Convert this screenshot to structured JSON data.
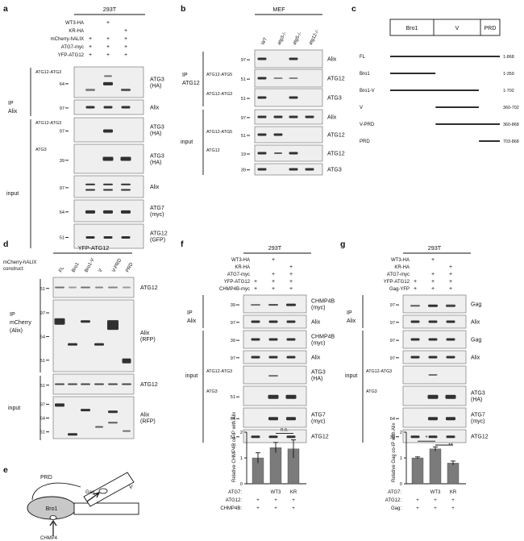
{
  "panels": {
    "a": {
      "letter": "a",
      "cell": "293T",
      "cond_labels": [
        "WT3-HA",
        "KR-HA",
        "mCherry-hALIX",
        "ATG7-myc",
        "YFP-ATG12"
      ],
      "cond_marks": [
        [
          "",
          "+",
          ""
        ],
        [
          "",
          "",
          "+"
        ],
        [
          "+",
          "+",
          "+"
        ],
        [
          "+",
          "+",
          "+"
        ],
        [
          "+",
          "+",
          "+"
        ]
      ],
      "group_ip": "IP",
      "group_ip2": "Alix",
      "group_input": "input",
      "blots": [
        {
          "labels": [
            "ATG3",
            "(HA)"
          ],
          "sub": "ATG12-ATG3",
          "mw": [
            "64"
          ]
        },
        {
          "labels": [
            "Alix"
          ],
          "sub": "",
          "mw": [
            "97"
          ]
        },
        {
          "labels": [
            "ATG3",
            "(HA)"
          ],
          "sub": "ATG12-ATG3",
          "mw": [
            "97"
          ]
        },
        {
          "labels": [
            "ATG3",
            "(HA)"
          ],
          "sub": "ATG3",
          "mw": [
            "39"
          ]
        },
        {
          "labels": [
            "Alix"
          ],
          "sub": "",
          "mw": [
            "97"
          ]
        },
        {
          "labels": [
            "ATG7",
            "(myc)"
          ],
          "sub": "",
          "mw": [
            "64"
          ]
        },
        {
          "labels": [
            "ATG12",
            "(GFP)"
          ],
          "sub": "",
          "mw": [
            "51"
          ]
        }
      ]
    },
    "b": {
      "letter": "b",
      "cell": "MEF",
      "lanes": [
        "WT",
        "atg3-/-",
        "atg5-/-",
        "atg12-/-"
      ],
      "group_ip": "IP",
      "group_ip2": "ATG12",
      "group_input": "input",
      "blots": [
        {
          "labels": [
            "Alix"
          ],
          "sub": "",
          "mw": [
            "97"
          ]
        },
        {
          "labels": [
            "ATG12"
          ],
          "sub": "ATG12-ATG5",
          "mw": [
            "51"
          ]
        },
        {
          "labels": [
            "ATG3"
          ],
          "sub": "ATG12-ATG3",
          "mw": [
            "51"
          ]
        },
        {
          "labels": [
            "Alix"
          ],
          "sub": "",
          "mw": [
            "97"
          ]
        },
        {
          "labels": [
            "ATG12"
          ],
          "sub": "ATG12-ATG5",
          "mw": [
            "51"
          ]
        },
        {
          "labels": [
            "ATG12"
          ],
          "sub": "ATG12",
          "mw": [
            "19"
          ]
        },
        {
          "labels": [
            "ATG3"
          ],
          "sub": "",
          "mw": [
            "39"
          ]
        }
      ]
    },
    "c": {
      "letter": "c",
      "domains": [
        "Bro1",
        "V",
        "PRD"
      ],
      "constructs": [
        {
          "name": "FL",
          "range": "1-868"
        },
        {
          "name": "Bro1",
          "range": "1-359"
        },
        {
          "name": "Bro1-V",
          "range": "1-702"
        },
        {
          "name": "V",
          "range": "360-702"
        },
        {
          "name": "V-PRD",
          "range": "360-868"
        },
        {
          "name": "PRD",
          "range": "703-868"
        }
      ]
    },
    "d": {
      "letter": "d",
      "cell": "YFP-ATG12",
      "construct_label_1": "mCherry-hALIX",
      "construct_label_2": "construct:",
      "lanes": [
        "FL",
        "Bro1",
        "Bro1-V",
        "V",
        "V-PRD",
        "PRD"
      ],
      "group_ip": "IP",
      "group_ip2": "mCherry",
      "group_ip3": "(Alix)",
      "group_input": "input",
      "blots": [
        {
          "labels": [
            "ATG12"
          ],
          "mw": [
            "51"
          ]
        },
        {
          "labels": [
            "Alix",
            "(RFP)"
          ],
          "mw": [
            "97",
            "64",
            "51"
          ]
        },
        {
          "labels": [
            "ATG12"
          ],
          "mw": [
            "51"
          ]
        },
        {
          "labels": [
            "Alix",
            "(RFP)"
          ],
          "mw": [
            "97",
            "64",
            "51"
          ]
        }
      ]
    },
    "e": {
      "letter": "e",
      "labels": {
        "prd": "PRD",
        "v": "V",
        "gag": "Gag",
        "bro1": "Bro1",
        "chmp4": "CHMP4"
      }
    },
    "f": {
      "letter": "f",
      "cell": "293T",
      "cond_labels": [
        "WT3-HA",
        "KR-HA",
        "ATG7-myc",
        "YFP-ATG12",
        "CHMP4B-myc"
      ],
      "cond_marks": [
        [
          "",
          "+",
          ""
        ],
        [
          "",
          "",
          "+"
        ],
        [
          "",
          "+",
          "+"
        ],
        [
          "+",
          "+",
          "+"
        ],
        [
          "+",
          "+",
          "+"
        ]
      ],
      "group_ip": "IP",
      "group_ip2": "Alix",
      "group_input": "input",
      "blots": [
        {
          "labels": [
            "CHMP4B",
            "(myc)"
          ],
          "sub": "",
          "mw": [
            "39"
          ]
        },
        {
          "labels": [
            "Alix"
          ],
          "sub": "",
          "mw": [
            "97"
          ]
        },
        {
          "labels": [
            "CHMP4B",
            "(myc)"
          ],
          "sub": "",
          "mw": [
            "39"
          ]
        },
        {
          "labels": [
            "Alix"
          ],
          "sub": "",
          "mw": [
            "97"
          ]
        },
        {
          "labels": [
            "ATG3",
            "(HA)"
          ],
          "sub": "ATG12-ATG3",
          "mw": []
        },
        {
          "labels": [],
          "sub": "ATG3",
          "mw": [
            "51"
          ]
        },
        {
          "labels": [
            "ATG7",
            "(myc)"
          ],
          "sub": "",
          "mw": [
            "64"
          ]
        },
        {
          "labels": [
            "ATG12"
          ],
          "sub": "",
          "mw": [
            "51"
          ]
        }
      ],
      "chart": {
        "ylabel": "Relative CHMP4B co-IP with Alix",
        "values": [
          1.0,
          1.4,
          1.35
        ],
        "errors": [
          0.2,
          0.2,
          0.35
        ],
        "annotation": "n.s.",
        "row_labels": [
          "ATG7:",
          "ATG12:",
          "CHMP4B:"
        ],
        "row_marks": [
          [
            "",
            "WT3",
            "KR"
          ],
          [
            "+",
            "+",
            "+"
          ],
          [
            "+",
            "+",
            "+"
          ]
        ]
      }
    },
    "g": {
      "letter": "g",
      "cell": "293T",
      "cond_labels": [
        "WT3-HA",
        "KR-HA",
        "ATG7-myc",
        "YFP-ATG12",
        "Gag-YFP"
      ],
      "cond_marks": [
        [
          "",
          "+",
          ""
        ],
        [
          "",
          "",
          "+"
        ],
        [
          "",
          "+",
          "+"
        ],
        [
          "+",
          "+",
          "+"
        ],
        [
          "+",
          "+",
          "+"
        ]
      ],
      "group_ip": "IP",
      "group_ip2": "Alix",
      "group_input": "input",
      "blots": [
        {
          "labels": [
            "Gag"
          ],
          "sub": "",
          "mw": [
            "97"
          ]
        },
        {
          "labels": [
            "Alix"
          ],
          "sub": "",
          "mw": [
            "97"
          ]
        },
        {
          "labels": [
            "Gag"
          ],
          "sub": "",
          "mw": [
            "97"
          ]
        },
        {
          "labels": [
            "Alix"
          ],
          "sub": "",
          "mw": [
            "97"
          ]
        },
        {
          "labels": [],
          "sub": "ATG12-ATG3",
          "mw": []
        },
        {
          "labels": [
            "ATG3",
            "(HA)"
          ],
          "sub": "ATG3",
          "mw": []
        },
        {
          "labels": [
            "ATG7",
            "(myc)"
          ],
          "sub": "",
          "mw": [
            "64"
          ]
        },
        {
          "labels": [
            "ATG12"
          ],
          "sub": "",
          "mw": [
            "39"
          ]
        }
      ],
      "chart": {
        "ylabel": "Relative Gag co-IP with Alix",
        "values": [
          1.0,
          1.35,
          0.8
        ],
        "errors": [
          0.04,
          0.08,
          0.08
        ],
        "annotations": [
          "*",
          "**"
        ],
        "row_labels": [
          "ATG7:",
          "ATG12:",
          "Gag:"
        ],
        "row_marks": [
          [
            "",
            "WT3",
            "KR"
          ],
          [
            "+",
            "+",
            "+"
          ],
          [
            "+",
            "+",
            "+"
          ]
        ]
      }
    }
  },
  "chart_data": [
    {
      "type": "bar",
      "categories": [
        "-",
        "WT3",
        "KR"
      ],
      "values": [
        1.0,
        1.4,
        1.35
      ],
      "errors": [
        0.2,
        0.2,
        0.35
      ],
      "ylabel": "Relative CHMP4B co-IP with Alix",
      "ylim": [
        0,
        2
      ],
      "yticks": [
        0,
        1,
        2
      ]
    },
    {
      "type": "bar",
      "categories": [
        "-",
        "WT3",
        "KR"
      ],
      "values": [
        1.0,
        1.35,
        0.8
      ],
      "errors": [
        0.04,
        0.08,
        0.08
      ],
      "ylabel": "Relative Gag co-IP with Alix",
      "ylim": [
        0,
        2
      ],
      "yticks": [
        0,
        1,
        2
      ]
    }
  ]
}
